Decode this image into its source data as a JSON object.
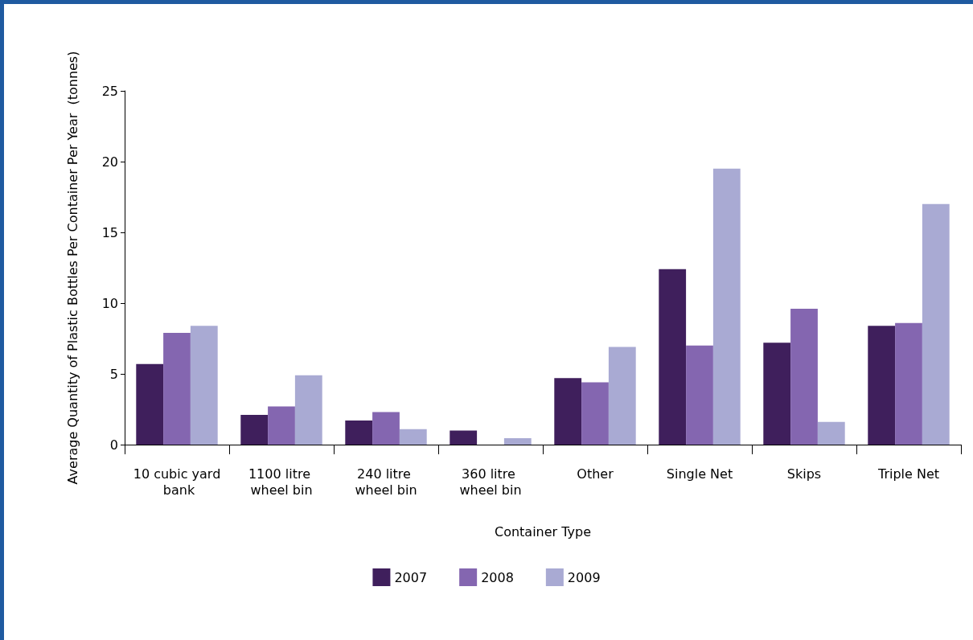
{
  "chart_data": {
    "type": "bar",
    "xlabel": "Container Type",
    "ylabel": "Average Quantity of Plastic Bottles Per Container Per Year  (tonnes)",
    "categories": [
      "10 cubic yard bank",
      "1100 litre wheel bin",
      "240 litre wheel bin",
      "360 litre wheel bin",
      "Other",
      "Single Net",
      "Skips",
      "Triple Net"
    ],
    "series": [
      {
        "name": "2007",
        "color": "#3f1f5c",
        "values": [
          5.7,
          2.1,
          1.7,
          1.0,
          4.7,
          12.4,
          7.2,
          8.4
        ]
      },
      {
        "name": "2008",
        "color": "#8466b0",
        "values": [
          7.9,
          2.7,
          2.3,
          null,
          4.4,
          7.0,
          9.6,
          8.6
        ]
      },
      {
        "name": "2009",
        "color": "#a9aad3",
        "values": [
          8.4,
          4.9,
          1.1,
          0.45,
          6.9,
          19.5,
          1.6,
          17.0
        ]
      }
    ],
    "ylim": [
      0,
      25
    ],
    "yticks": [
      0,
      5,
      10,
      15,
      20,
      25
    ],
    "grid": false,
    "legend": "bottom"
  }
}
